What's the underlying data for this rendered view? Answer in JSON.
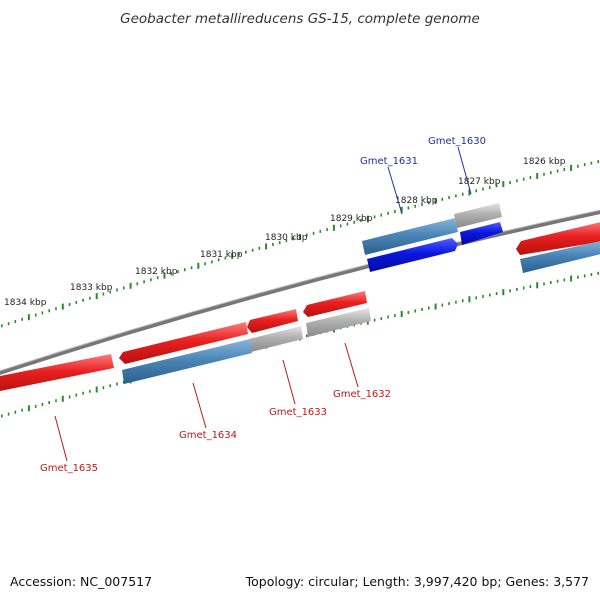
{
  "title": "Geobacter metallireducens GS-15, complete genome",
  "footer": {
    "accession": "Accession: NC_007517",
    "summary": "Topology: circular; Length: 3,997,420 bp; Genes: 3,577"
  },
  "ruler_labels": [
    "1834 kbp",
    "1833 kbp",
    "1832 kbp",
    "1831 kbp",
    "1830 kbp",
    "1829 kbp",
    "1828 kbp",
    "1827 kbp",
    "1826 kbp"
  ],
  "gene_labels": {
    "gmet_1630": "Gmet_1630",
    "gmet_1631": "Gmet_1631",
    "gmet_1632": "Gmet_1632",
    "gmet_1633": "Gmet_1633",
    "gmet_1634": "Gmet_1634",
    "gmet_1635": "Gmet_1635"
  },
  "colors": {
    "cds_forward": "#e82020",
    "cds_blue": "#0a17e0",
    "rna_steel": "#4b86b8",
    "gene_grey": "#aeaeae",
    "backbone": "#777777",
    "ruler_green": "#2a8a2a"
  }
}
